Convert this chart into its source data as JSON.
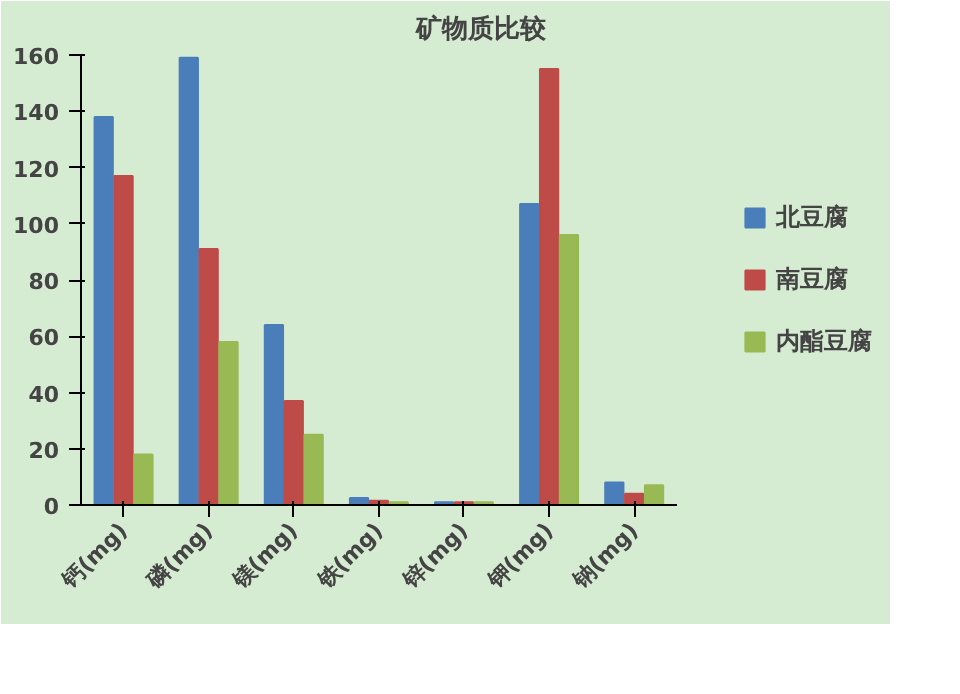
{
  "chart_data": {
    "type": "bar",
    "title": "矿物质比较",
    "categories": [
      "钙(mg)",
      "磷(mg)",
      "镁(mg)",
      "铁(mg)",
      "锌(mg)",
      "钾(mg)",
      "钠(mg)"
    ],
    "series": [
      {
        "name": "北豆腐",
        "color": "#4a7ebb",
        "values": [
          138,
          159,
          64,
          2.5,
          1,
          107,
          8
        ]
      },
      {
        "name": "南豆腐",
        "color": "#be4b48",
        "values": [
          117,
          91,
          37,
          1.5,
          1,
          155,
          4
        ]
      },
      {
        "name": "内酯豆腐",
        "color": "#98b954",
        "values": [
          18,
          58,
          25,
          1,
          1,
          96,
          7
        ]
      }
    ],
    "ylim": [
      0,
      160
    ],
    "yticks": [
      0,
      20,
      40,
      60,
      80,
      100,
      120,
      140,
      160
    ],
    "grid": false,
    "legend": "right"
  }
}
